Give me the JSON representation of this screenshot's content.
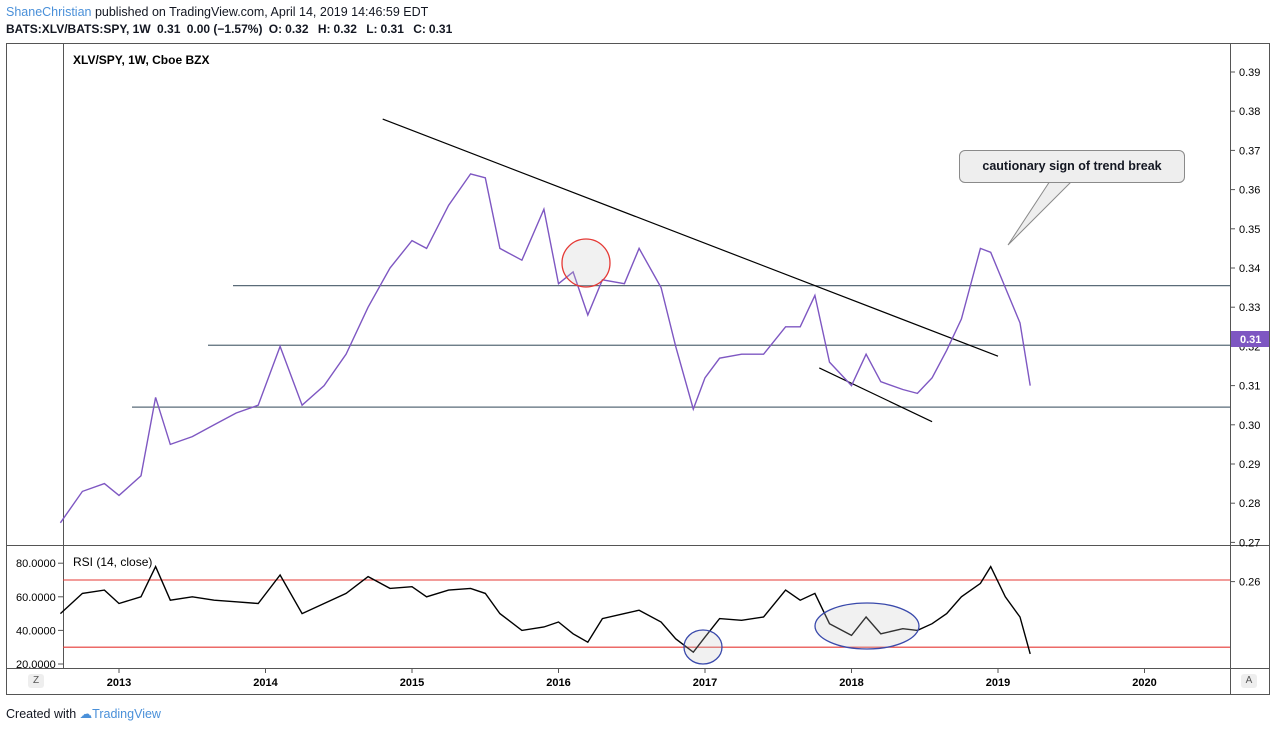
{
  "header": {
    "author": "ShaneChristian",
    "published": "published on TradingView.com, April 14, 2019 14:46:59 EDT",
    "symbol": "BATS:XLV/BATS:SPY, 1W",
    "last": "0.31",
    "change": "0.00 (−1.57%)",
    "o_label": "O:",
    "o_value": "0.32",
    "h_label": "H:",
    "h_value": "0.32",
    "l_label": "L:",
    "l_value": "0.31",
    "c_label": "C:",
    "c_value": "0.31"
  },
  "footer": {
    "created_with": "Created with",
    "brand": "TradingView"
  },
  "corners": {
    "left": "Z",
    "right": "A"
  },
  "colors": {
    "price_line": "#7e57c2",
    "rsi_line": "#000000",
    "band": "#e53935",
    "circle_red": "#e53935",
    "circle_blue": "#3949ab",
    "horizontal": "#5a6b78",
    "trendline": "#000000",
    "last_price_badge": "#7e57c2"
  },
  "annotation": {
    "callout": "cautionary sign of trend break"
  },
  "chart_data": [
    {
      "type": "line",
      "title": "XLV/SPY, 1W, Cboe BZX",
      "ylim": [
        0.26,
        0.39
      ],
      "y_ticks": [
        "0.39",
        "0.38",
        "0.37",
        "0.36",
        "0.35",
        "0.34",
        "0.33",
        "0.32",
        "0.31",
        "0.30",
        "0.29",
        "0.28",
        "0.27",
        "0.26"
      ],
      "x_ticks": [
        "2013",
        "2014",
        "2015",
        "2016",
        "2017",
        "2018",
        "2019",
        "2020"
      ],
      "last_value_label": "0.31",
      "series": [
        {
          "x": [
            2012.6,
            2012.75,
            2012.9,
            2013.0,
            2013.15,
            2013.25,
            2013.35,
            2013.5,
            2013.65,
            2013.8,
            2013.95,
            2014.1,
            2014.25,
            2014.4,
            2014.55,
            2014.7,
            2014.85,
            2015.0,
            2015.1,
            2015.25,
            2015.4,
            2015.5,
            2015.6,
            2015.75,
            2015.9,
            2016.0,
            2016.1,
            2016.2,
            2016.3,
            2016.45,
            2016.55,
            2016.7,
            2016.8,
            2016.92,
            2017.0,
            2017.1,
            2017.25,
            2017.4,
            2017.55,
            2017.65,
            2017.75,
            2017.85,
            2018.0,
            2018.1,
            2018.2,
            2018.35,
            2018.45,
            2018.55,
            2018.65,
            2018.75,
            2018.88,
            2018.95,
            2019.05,
            2019.15,
            2019.22
          ],
          "values": [
            0.275,
            0.283,
            0.285,
            0.282,
            0.287,
            0.307,
            0.295,
            0.297,
            0.3,
            0.303,
            0.305,
            0.32,
            0.305,
            0.31,
            0.318,
            0.33,
            0.34,
            0.347,
            0.345,
            0.356,
            0.364,
            0.363,
            0.345,
            0.342,
            0.355,
            0.336,
            0.339,
            0.328,
            0.337,
            0.336,
            0.345,
            0.335,
            0.32,
            0.304,
            0.312,
            0.317,
            0.318,
            0.318,
            0.325,
            0.325,
            0.333,
            0.316,
            0.31,
            0.318,
            0.311,
            0.309,
            0.308,
            0.312,
            0.319,
            0.327,
            0.345,
            0.344,
            0.335,
            0.326,
            0.31
          ]
        }
      ],
      "horizontal_levels": [
        0.3355,
        0.3203,
        0.3045
      ],
      "trendlines": [
        {
          "x": [
            2014.8,
            2019.0
          ],
          "values": [
            0.378,
            0.3175
          ]
        },
        {
          "x": [
            2017.78,
            2018.55
          ],
          "values": [
            0.3145,
            0.3008
          ]
        }
      ]
    },
    {
      "type": "line",
      "title": "RSI (14, close)",
      "ylim": [
        20,
        80
      ],
      "y_ticks": [
        "80.0000",
        "60.0000",
        "40.0000",
        "20.0000"
      ],
      "bands": [
        70,
        30
      ],
      "series": [
        {
          "x": [
            2012.6,
            2012.75,
            2012.9,
            2013.0,
            2013.15,
            2013.25,
            2013.35,
            2013.5,
            2013.65,
            2013.8,
            2013.95,
            2014.1,
            2014.25,
            2014.4,
            2014.55,
            2014.7,
            2014.85,
            2015.0,
            2015.1,
            2015.25,
            2015.4,
            2015.5,
            2015.6,
            2015.75,
            2015.9,
            2016.0,
            2016.1,
            2016.2,
            2016.3,
            2016.45,
            2016.55,
            2016.7,
            2016.8,
            2016.92,
            2017.0,
            2017.1,
            2017.25,
            2017.4,
            2017.55,
            2017.65,
            2017.75,
            2017.85,
            2018.0,
            2018.1,
            2018.2,
            2018.35,
            2018.45,
            2018.55,
            2018.65,
            2018.75,
            2018.88,
            2018.95,
            2019.05,
            2019.15,
            2019.22
          ],
          "values": [
            50,
            62,
            64,
            56,
            60,
            78,
            58,
            60,
            58,
            57,
            56,
            73,
            50,
            56,
            62,
            72,
            65,
            66,
            60,
            64,
            65,
            62,
            50,
            40,
            42,
            45,
            38,
            33,
            47,
            50,
            52,
            45,
            35,
            27,
            36,
            47,
            46,
            48,
            64,
            58,
            62,
            44,
            37,
            48,
            38,
            41,
            40,
            44,
            50,
            60,
            68,
            78,
            60,
            48,
            26
          ]
        }
      ]
    }
  ]
}
